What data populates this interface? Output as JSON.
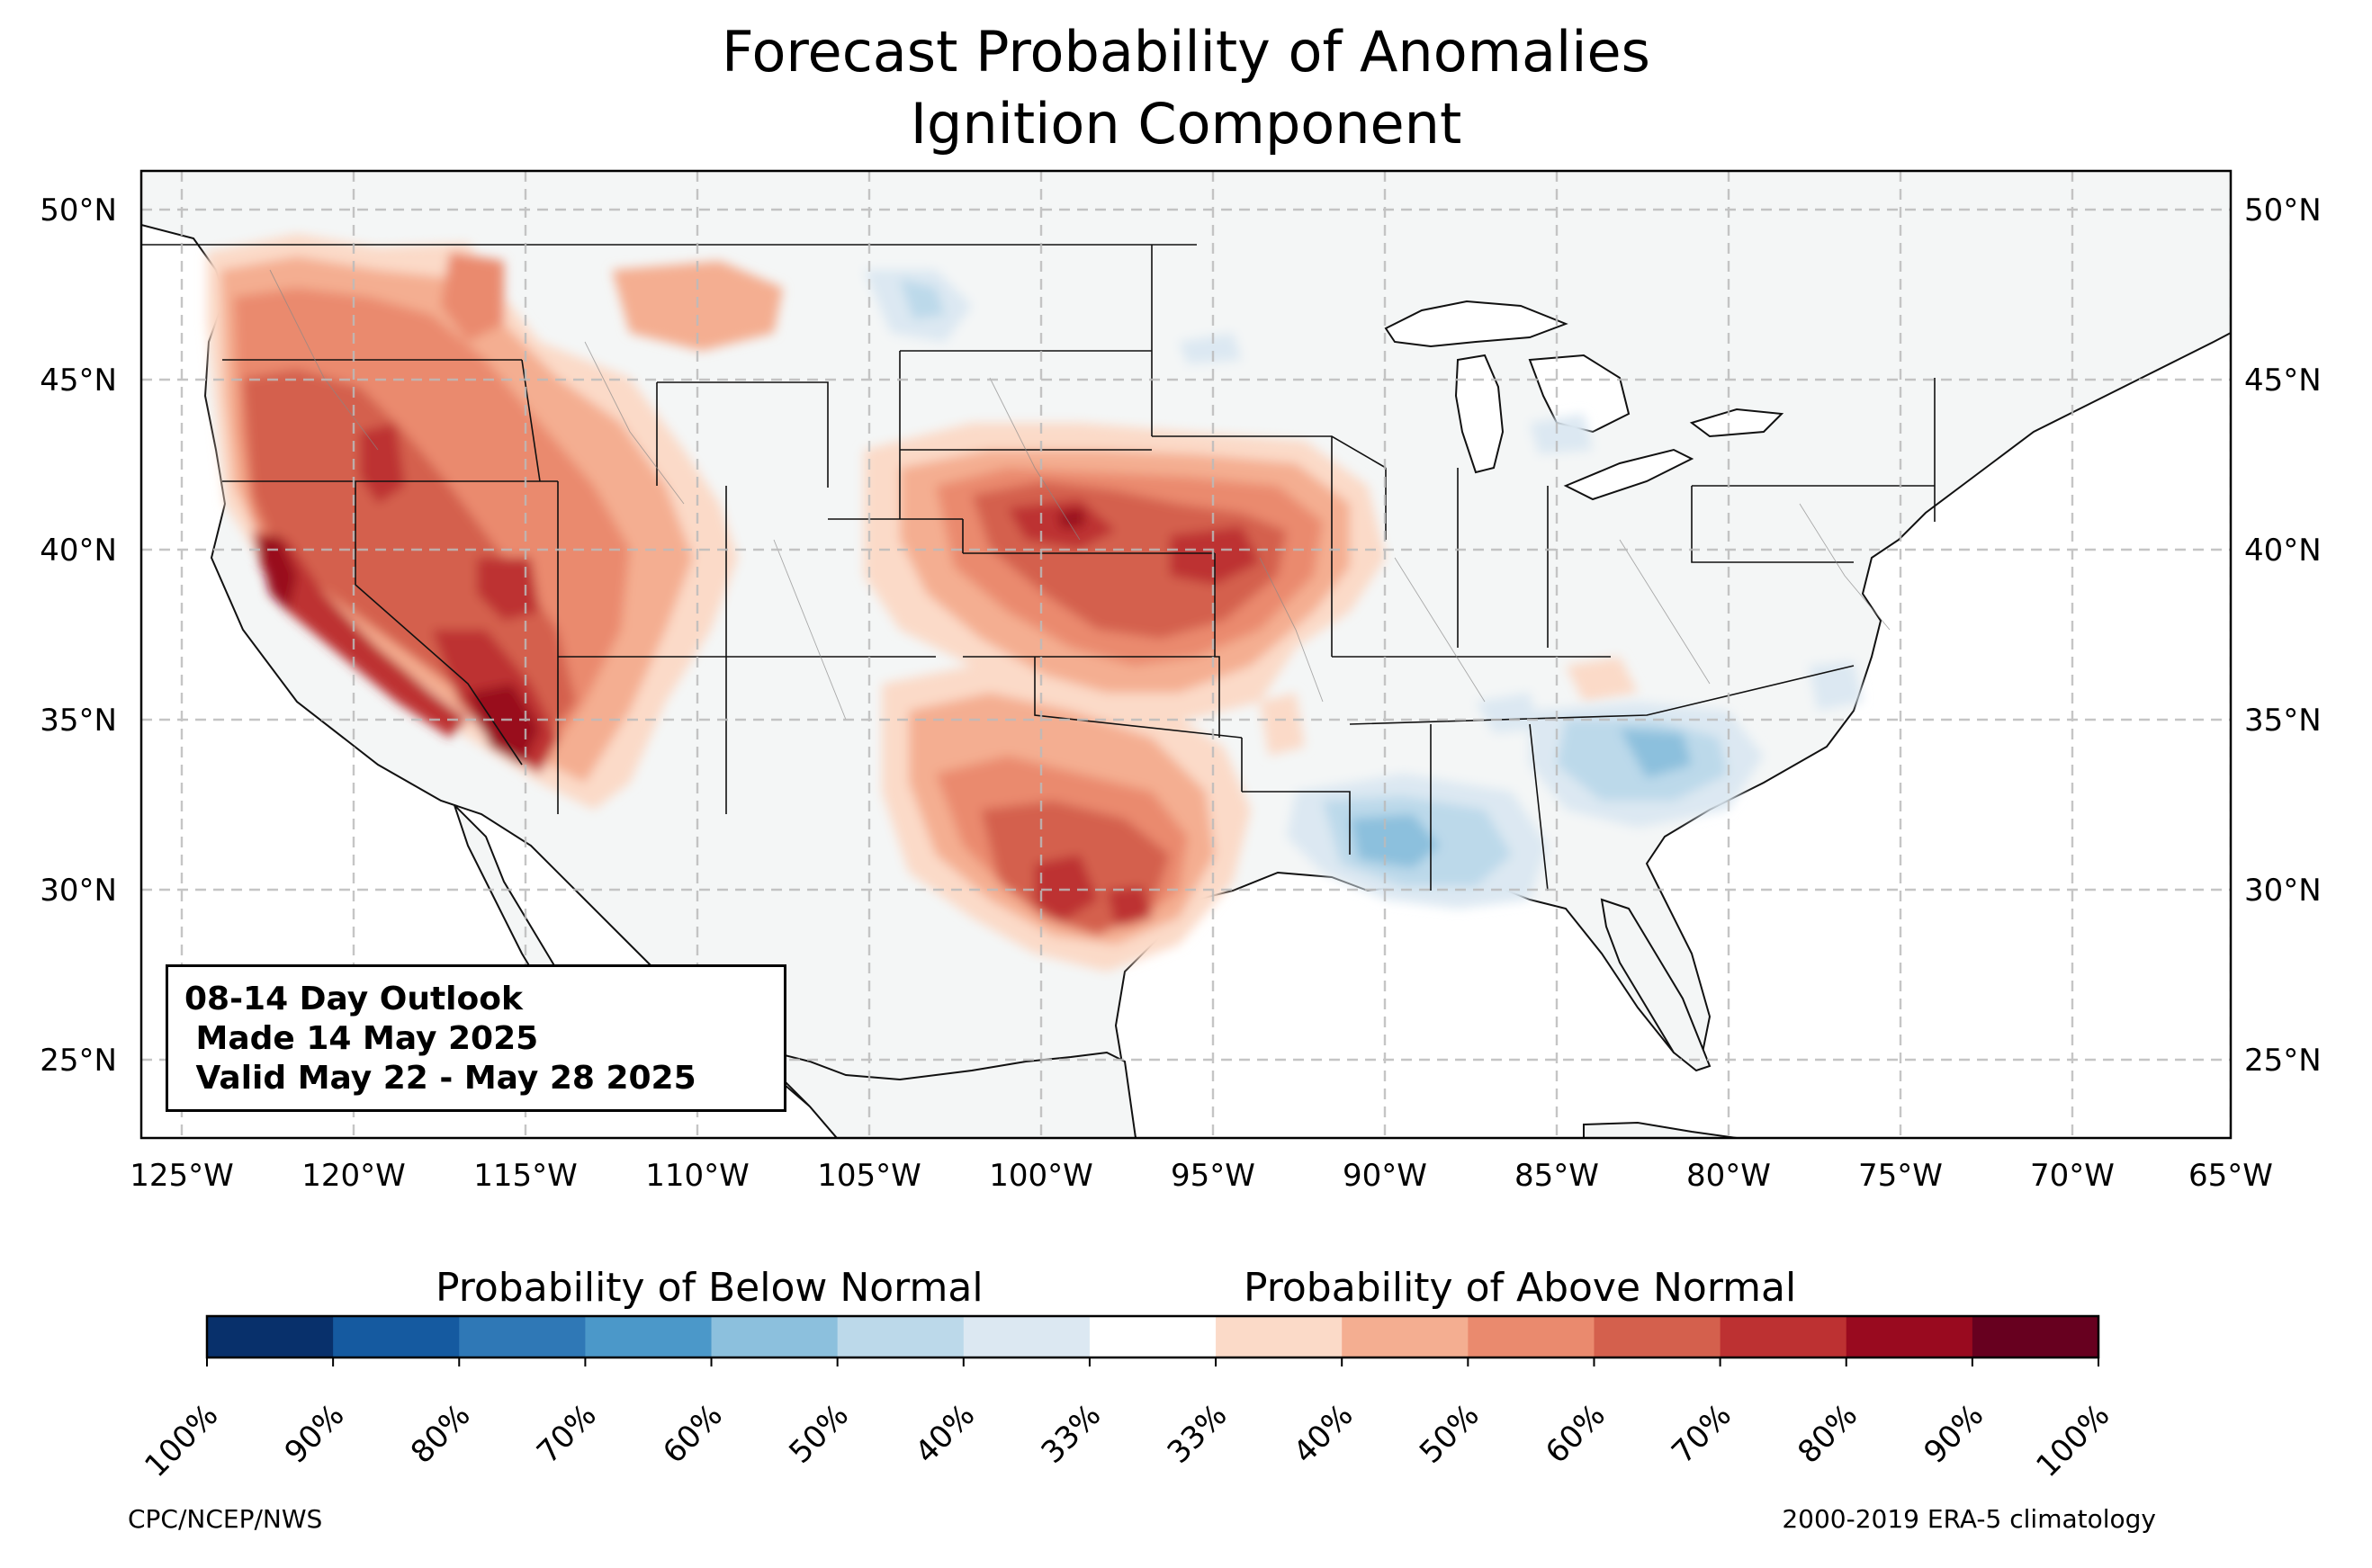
{
  "title": {
    "line1": "Forecast Probability of Anomalies",
    "line2": "Ignition Component"
  },
  "map": {
    "region": "Contiguous United States",
    "lat_ticks": [
      "50°N",
      "45°N",
      "40°N",
      "35°N",
      "30°N",
      "25°N"
    ],
    "lon_ticks": [
      "125°W",
      "120°W",
      "115°W",
      "110°W",
      "105°W",
      "100°W",
      "95°W",
      "90°W",
      "85°W",
      "80°W",
      "75°W",
      "70°W",
      "65°W"
    ],
    "lat_range": [
      22.7,
      51.2
    ],
    "lon_range": [
      -126.2,
      -64.8
    ],
    "grid": "dashed",
    "land_color": "#f4f6f6",
    "above_normal_areas": [
      {
        "region": "Pacific Northwest / Northern Rockies",
        "max_band": "60-70%"
      },
      {
        "region": "California / Nevada / Arizona (Southwest)",
        "max_band": "80-90%"
      },
      {
        "region": "Central Plains (Nebraska, Kansas, Iowa, Missouri)",
        "max_band": "70-80%"
      },
      {
        "region": "Texas",
        "max_band": "70-80%"
      }
    ],
    "below_normal_areas": [
      {
        "region": "Gulf Coast (Louisiana, Mississippi, Alabama)",
        "max_band": "50-60%"
      },
      {
        "region": "Georgia / Carolinas",
        "max_band": "50-60%"
      },
      {
        "region": "Northern Plains / Dakotas",
        "max_band": "40-50%"
      }
    ]
  },
  "outlook": {
    "line1": "08-14 Day Outlook",
    "line2": " Made 14 May 2025",
    "line3": " Valid May 22 - May 28 2025"
  },
  "colorbar": {
    "below_label": "Probability of Below Normal",
    "above_label": "Probability of Above Normal",
    "tick_labels": [
      "100%",
      "90%",
      "80%",
      "70%",
      "60%",
      "50%",
      "40%",
      "33%",
      "33%",
      "40%",
      "50%",
      "60%",
      "70%",
      "80%",
      "90%",
      "100%"
    ],
    "colors": [
      "#08306b",
      "#155aa0",
      "#2f78b6",
      "#4b98c9",
      "#8cc0dd",
      "#bcd9ea",
      "#dce8f2",
      "#ffffff",
      "#fbdac8",
      "#f4ae91",
      "#ea8a6e",
      "#d4604d",
      "#bd3132",
      "#990a1f",
      "#67001f"
    ]
  },
  "footer": {
    "left": "CPC/NCEP/NWS",
    "right": "2000-2019 ERA-5 climatology"
  }
}
